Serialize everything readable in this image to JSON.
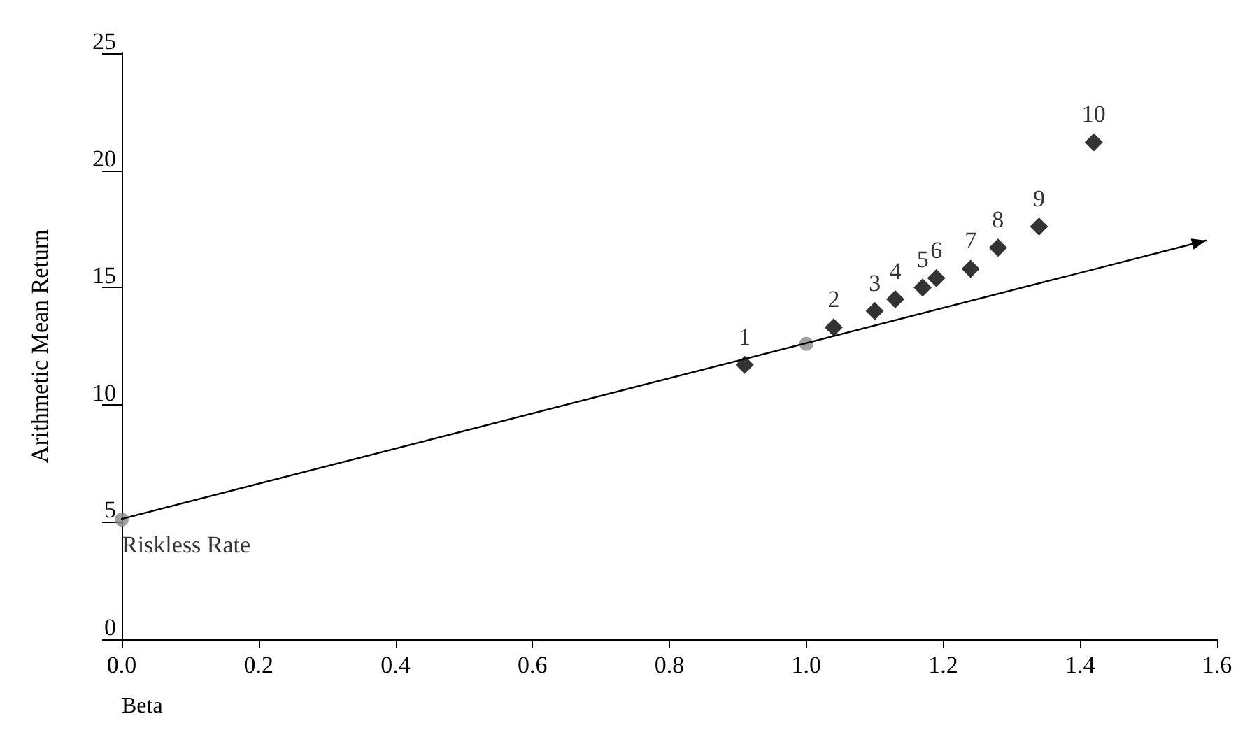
{
  "chart_data": {
    "type": "scatter",
    "xlabel": "Beta",
    "ylabel": "Arithmetic Mean Return",
    "xlim": [
      0,
      1.6
    ],
    "xticks": [
      {
        "value": 0,
        "label": "0.0"
      },
      {
        "value": 0.2,
        "label": "0.2"
      },
      {
        "value": 0.4,
        "label": "0.4"
      },
      {
        "value": 0.6,
        "label": "0.6"
      },
      {
        "value": 0.8,
        "label": "0.8"
      },
      {
        "value": 1,
        "label": "1.0"
      },
      {
        "value": 1.2,
        "label": "1.2"
      },
      {
        "value": 1.4,
        "label": "1.4"
      },
      {
        "value": 1.6,
        "label": "1.6"
      }
    ],
    "ylim": [
      0,
      25
    ],
    "yticks": [
      0,
      5,
      10,
      15,
      20,
      25
    ],
    "grid": false,
    "series": [
      {
        "color": "#888888",
        "marker": "circle",
        "x": [
          0,
          1.0
        ],
        "values": [
          5.1,
          12.6
        ]
      },
      {
        "color": "#000000",
        "marker": "diamond",
        "x": [
          0.91,
          1.04,
          1.1,
          1.13,
          1.17,
          1.19,
          1.24,
          1.28,
          1.34,
          1.42
        ],
        "values": [
          11.7,
          13.3,
          14.0,
          14.5,
          15.0,
          15.4,
          15.8,
          16.7,
          17.6,
          21.2
        ]
      }
    ],
    "annotations": [
      {
        "text": "Riskless Rate",
        "x": 0,
        "y": 5.1
      },
      {
        "text": "1",
        "x": 0.91,
        "y": 11.7
      },
      {
        "text": "2",
        "x": 1.04,
        "y": 13.3
      },
      {
        "text": "3",
        "x": 1.1,
        "y": 14.0
      },
      {
        "text": "4",
        "x": 1.13,
        "y": 14.5
      },
      {
        "text": "5",
        "x": 1.17,
        "y": 15.0
      },
      {
        "text": "6",
        "x": 1.19,
        "y": 15.4
      },
      {
        "text": "7",
        "x": 1.24,
        "y": 15.8
      },
      {
        "text": "8",
        "x": 1.28,
        "y": 16.7
      },
      {
        "text": "9",
        "x": 1.34,
        "y": 17.6
      },
      {
        "text": "10",
        "x": 1.42,
        "y": 21.2
      }
    ]
  }
}
